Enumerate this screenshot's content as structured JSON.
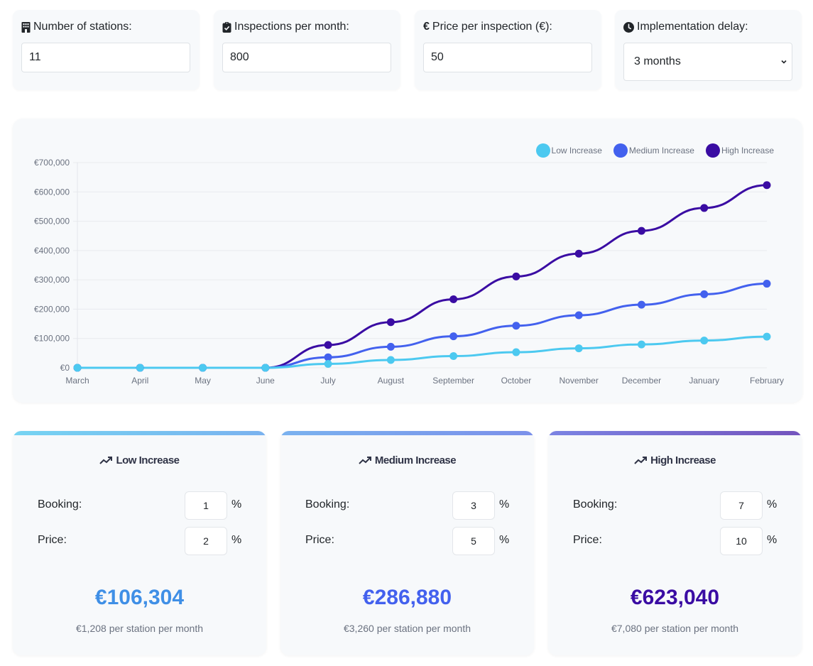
{
  "inputs": {
    "stations": {
      "label": "Number of stations:",
      "value": "11",
      "icon": "building-icon"
    },
    "inspections": {
      "label": "Inspections per month:",
      "value": "800",
      "icon": "clipboard-check-icon"
    },
    "price": {
      "label": "Price per inspection (€):",
      "value": "50",
      "icon": "euro-icon",
      "icon_glyph": "€"
    },
    "delay": {
      "label": "Implementation delay:",
      "value": "3 months",
      "icon": "clock-icon"
    }
  },
  "colors": {
    "low": "#4cc9f0",
    "medium": "#4361ee",
    "high": "#3a0ca3",
    "low_total": "#3f8fe6",
    "medium_total": "#4361ee",
    "high_total": "#3a0ca3"
  },
  "chart_data": {
    "type": "line",
    "title": "",
    "xlabel": "",
    "ylabel": "",
    "categories": [
      "March",
      "April",
      "May",
      "June",
      "July",
      "August",
      "September",
      "October",
      "November",
      "December",
      "January",
      "February"
    ],
    "ylim": [
      0,
      700000
    ],
    "yticks": [
      0,
      100000,
      200000,
      300000,
      400000,
      500000,
      600000,
      700000
    ],
    "ytick_labels": [
      "€0",
      "€100,000",
      "€200,000",
      "€300,000",
      "€400,000",
      "€500,000",
      "€600,000",
      "€700,000"
    ],
    "grid": true,
    "legend_position": "top-right",
    "series": [
      {
        "name": "Low Increase",
        "color": "#4cc9f0",
        "values": [
          0,
          0,
          0,
          0,
          13288,
          26576,
          39864,
          53152,
          66440,
          79728,
          93016,
          106304
        ]
      },
      {
        "name": "Medium Increase",
        "color": "#4361ee",
        "values": [
          0,
          0,
          0,
          0,
          35860,
          71720,
          107580,
          143440,
          179300,
          215160,
          251020,
          286880
        ]
      },
      {
        "name": "High Increase",
        "color": "#3a0ca3",
        "values": [
          0,
          0,
          0,
          0,
          77880,
          155760,
          233640,
          311520,
          389400,
          467280,
          545160,
          623040
        ]
      }
    ]
  },
  "scenarios": [
    {
      "title": "Low Increase",
      "booking_label": "Booking:",
      "booking_value": "1",
      "price_label": "Price:",
      "price_value": "2",
      "pct_symbol": "%",
      "total": "€106,304",
      "per_station": "€1,208 per station per month"
    },
    {
      "title": "Medium Increase",
      "booking_label": "Booking:",
      "booking_value": "3",
      "price_label": "Price:",
      "price_value": "5",
      "pct_symbol": "%",
      "total": "€286,880",
      "per_station": "€3,260 per station per month"
    },
    {
      "title": "High Increase",
      "booking_label": "Booking:",
      "booking_value": "7",
      "price_label": "Price:",
      "price_value": "10",
      "pct_symbol": "%",
      "total": "€623,040",
      "per_station": "€7,080 per station per month"
    }
  ]
}
